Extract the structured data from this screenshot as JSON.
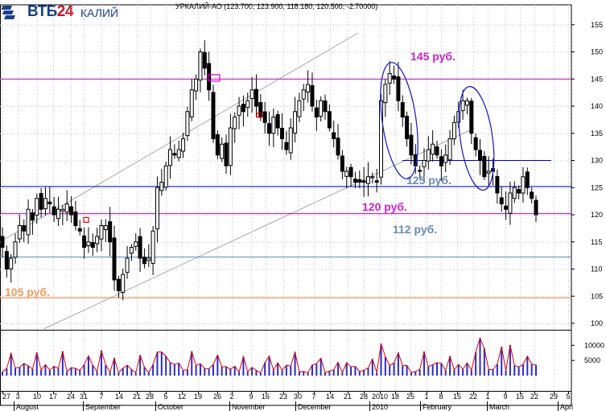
{
  "logo": {
    "brand_main": "ВТБ",
    "brand_num": "24",
    "brand_sub": "КАЛИЙ"
  },
  "header": {
    "text": "УРКАЛИЙ-АО (123.700, 123.900, 118.180, 120.500, -2.70000)"
  },
  "colors": {
    "background": "#ffffff",
    "candle": "#000000",
    "level_magenta": "#cc00cc",
    "level_blue": "#0000cc",
    "level_steel": "#5a8ab8",
    "level_orange": "#f08040",
    "channel": "#a8a8a8",
    "ellipse": "#2222cc",
    "volume_fill": "#2a2acc",
    "volume_line": "#dd0000",
    "label_magenta": "#cc22cc",
    "label_steel": "#6a8ab0",
    "label_orange": "#f29a5c"
  },
  "chart_data": {
    "type": "candlestick",
    "title": "УРКАЛИЙ-АО (123.700, 123.900, 118.180, 120.500, -2.70000)",
    "price_axis": {
      "ylim": [
        97,
        159
      ],
      "ticks": [
        100,
        105,
        110,
        115,
        120,
        125,
        130,
        135,
        140,
        145,
        150,
        155
      ]
    },
    "x_tick_labels": [
      "27",
      "3",
      "10",
      "17",
      "24",
      "31",
      "7",
      "14",
      "21",
      "28",
      "5",
      "12",
      "19",
      "26",
      "2",
      "9",
      "16",
      "23",
      "30",
      "7",
      "14",
      "21",
      "28",
      "2010",
      "18",
      "25",
      "1",
      "8",
      "15",
      "22",
      "1",
      "9",
      "15",
      "22",
      "29",
      "5"
    ],
    "month_labels": [
      "August",
      "September",
      "October",
      "November",
      "December",
      "2010",
      "February",
      "March",
      "Apri"
    ],
    "price_levels": [
      {
        "value": 145,
        "label": "145 руб.",
        "color": "#cc00cc"
      },
      {
        "value": 125.2,
        "label": "125 руб.",
        "color": "#0000cc"
      },
      {
        "value": 120.2,
        "label": "120 руб.",
        "color": "#cc00cc"
      },
      {
        "value": 112.2,
        "label": "112 руб.",
        "color": "#5a8ab8"
      },
      {
        "value": 104.7,
        "label": "105 руб.",
        "color": "#f08040"
      }
    ],
    "short_level": {
      "value": 130,
      "color": "#0000cc"
    },
    "closes": [
      114,
      110,
      112,
      115,
      118,
      117,
      121,
      119,
      123,
      121,
      123,
      122,
      120,
      121,
      121,
      122,
      120,
      118,
      117,
      114,
      115,
      114,
      116,
      118,
      118,
      115,
      108,
      106,
      109,
      112,
      114,
      115,
      112,
      111,
      112,
      117,
      125,
      126,
      129,
      132,
      131,
      132,
      134,
      139,
      143,
      145,
      150,
      147,
      143,
      134,
      131,
      133,
      129,
      136,
      138,
      140,
      139,
      141,
      143,
      140,
      138,
      137,
      135,
      138,
      136,
      134,
      132,
      136,
      139,
      141,
      143,
      144,
      140,
      138,
      141,
      139,
      136,
      134,
      131,
      128,
      128,
      127,
      126,
      126,
      126,
      127,
      127,
      126,
      141,
      144,
      146,
      145,
      141,
      138,
      134,
      131,
      129,
      128,
      130,
      132,
      133,
      131,
      129,
      131,
      134,
      137,
      139,
      141,
      141,
      135,
      132,
      130,
      127,
      128,
      128,
      124,
      122,
      121,
      124,
      125,
      124,
      127,
      125,
      123,
      120
    ],
    "volume": {
      "ticks": [
        5000,
        10000
      ],
      "max": 13000,
      "label_ticks": [
        "10000",
        "5000"
      ]
    }
  }
}
